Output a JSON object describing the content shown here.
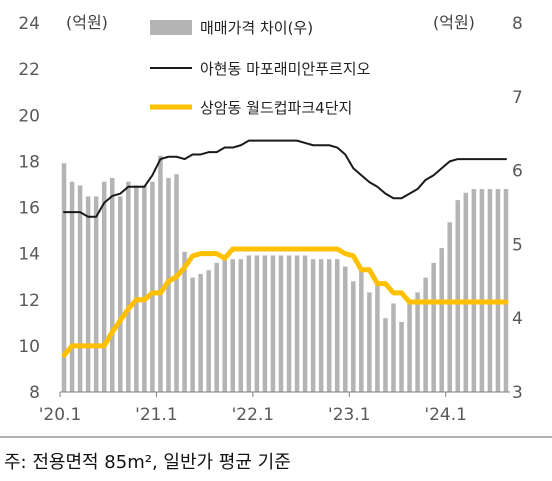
{
  "chart_data": {
    "type": "bar+line",
    "left_axis": {
      "unit": "(억원)",
      "min": 8,
      "max": 24,
      "ticks": [
        8,
        10,
        12,
        14,
        16,
        18,
        20,
        22,
        24
      ]
    },
    "right_axis": {
      "unit": "(억원)",
      "min": 3,
      "max": 8,
      "ticks": [
        3,
        4,
        5,
        6,
        7,
        8
      ]
    },
    "x_ticks": [
      "'20.1",
      "'21.1",
      "'22.1",
      "'23.1",
      "'24.1"
    ],
    "x_tick_indexes": [
      0,
      12,
      24,
      36,
      48
    ],
    "legend_position": "top",
    "series": [
      {
        "name": "매매가격 차이(우)",
        "kind": "bar",
        "axis": "right",
        "color": "#b4b4b4",
        "values": [
          6.1,
          5.85,
          5.8,
          5.65,
          5.65,
          5.85,
          5.9,
          5.65,
          5.85,
          5.8,
          5.8,
          5.85,
          6.2,
          5.9,
          5.95,
          4.9,
          4.55,
          4.6,
          4.65,
          4.75,
          4.85,
          4.8,
          4.8,
          4.85,
          4.85,
          4.85,
          4.85,
          4.85,
          4.85,
          4.85,
          4.85,
          4.8,
          4.8,
          4.8,
          4.8,
          4.7,
          4.5,
          4.65,
          4.35,
          4.45,
          4.0,
          4.2,
          3.95,
          4.25,
          4.35,
          4.55,
          4.75,
          4.95,
          5.3,
          5.6,
          5.7,
          5.75,
          5.75,
          5.75,
          5.75,
          5.75
        ]
      },
      {
        "name": "아현동 마포래미안푸르지오",
        "kind": "line",
        "axis": "left",
        "color": "#1a1a1a",
        "values": [
          15.8,
          15.8,
          15.8,
          15.6,
          15.6,
          16.2,
          16.5,
          16.6,
          16.9,
          16.9,
          16.9,
          17.4,
          18.1,
          18.2,
          18.2,
          18.1,
          18.3,
          18.3,
          18.4,
          18.4,
          18.6,
          18.6,
          18.7,
          18.9,
          18.9,
          18.9,
          18.9,
          18.9,
          18.9,
          18.9,
          18.8,
          18.7,
          18.7,
          18.7,
          18.6,
          18.3,
          17.7,
          17.4,
          17.1,
          16.9,
          16.6,
          16.4,
          16.4,
          16.6,
          16.8,
          17.2,
          17.4,
          17.7,
          18.0,
          18.1,
          18.1,
          18.1,
          18.1,
          18.1,
          18.1,
          18.1
        ]
      },
      {
        "name": "상암동 월드컵파크4단지",
        "kind": "line",
        "axis": "left",
        "color": "#ffc000",
        "values": [
          9.6,
          10.0,
          10.0,
          10.0,
          10.0,
          10.0,
          10.6,
          11.1,
          11.6,
          12.0,
          12.0,
          12.3,
          12.3,
          12.8,
          13.0,
          13.4,
          13.9,
          14.0,
          14.0,
          14.0,
          13.8,
          14.2,
          14.2,
          14.2,
          14.2,
          14.2,
          14.2,
          14.2,
          14.2,
          14.2,
          14.2,
          14.2,
          14.2,
          14.2,
          14.2,
          14.0,
          13.9,
          13.3,
          13.3,
          12.7,
          12.7,
          12.3,
          12.3,
          11.9,
          11.9,
          11.9,
          11.9,
          11.9,
          11.9,
          11.9,
          11.9,
          11.9,
          11.9,
          11.9,
          11.9,
          11.9
        ]
      }
    ]
  },
  "footnote": "주: 전용면적 85m², 일반가 평균 기준"
}
